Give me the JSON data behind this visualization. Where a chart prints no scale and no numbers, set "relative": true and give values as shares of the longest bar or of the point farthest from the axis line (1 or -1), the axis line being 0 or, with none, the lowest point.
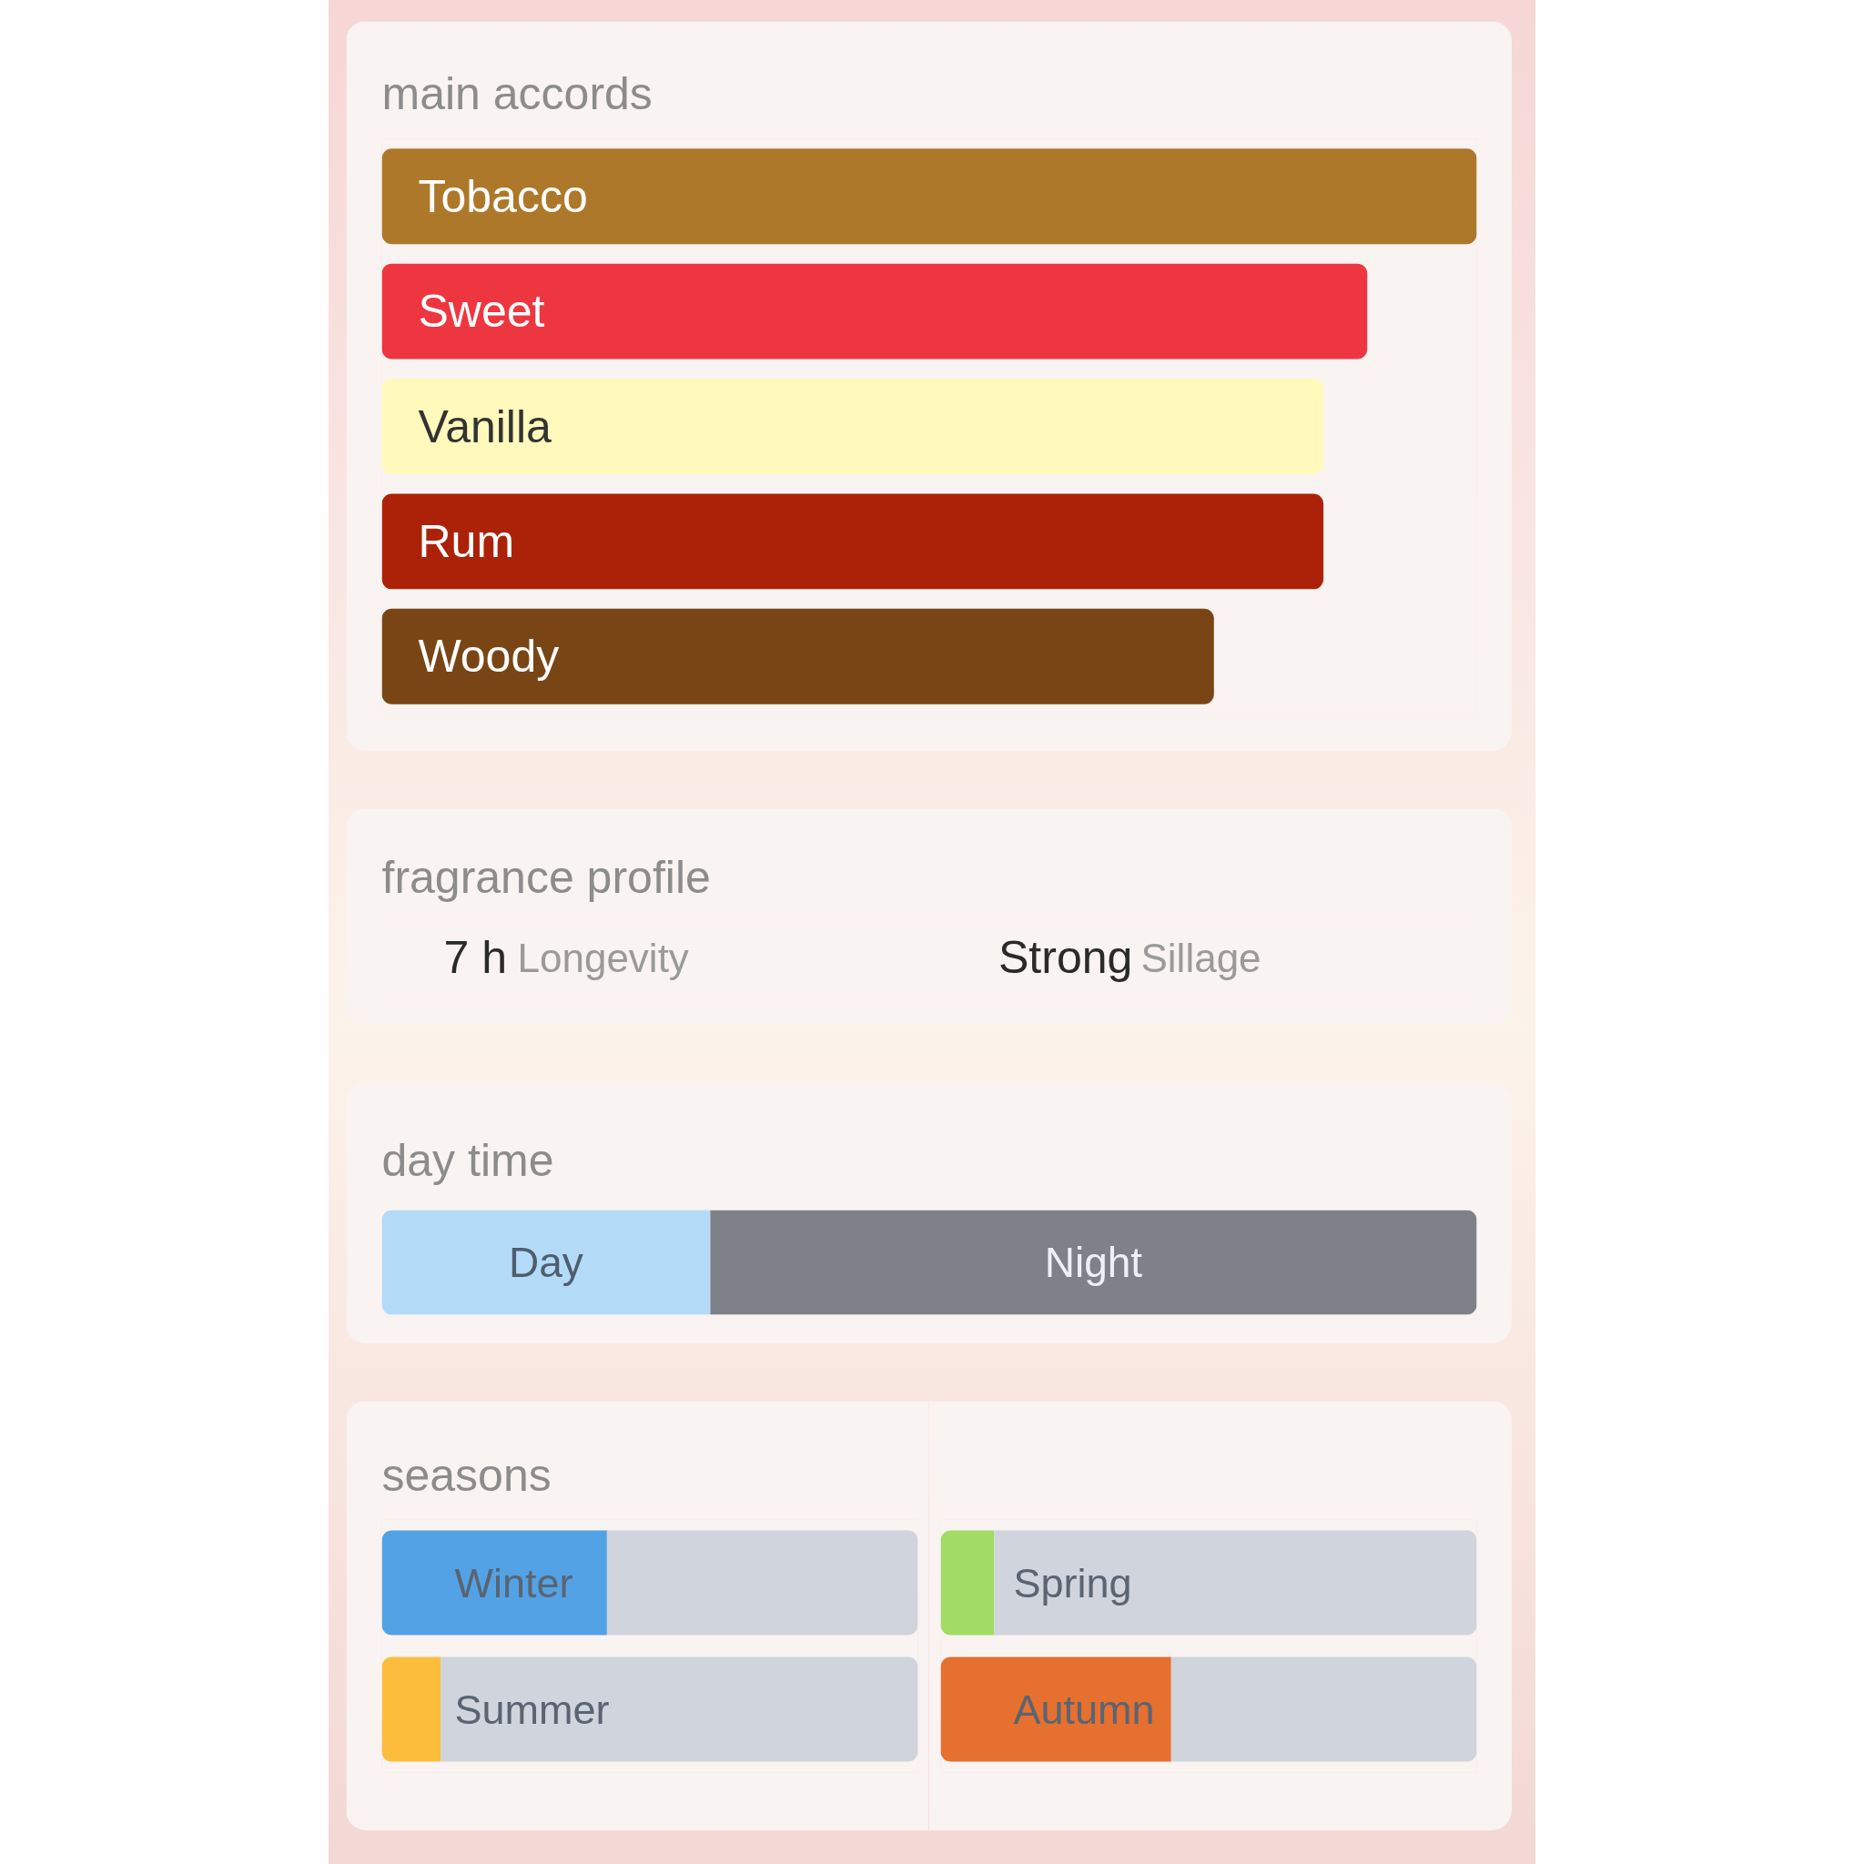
{
  "chart_data": [
    {
      "type": "bar",
      "title": "main accords",
      "orientation": "horizontal",
      "relative": true,
      "categories": [
        "Tobacco",
        "Sweet",
        "Vanilla",
        "Rum",
        "Woody"
      ],
      "values": [
        1,
        0.9,
        0.86,
        0.86,
        0.76
      ],
      "colors": [
        "#ae782a",
        "#ee3640",
        "#fff9bb",
        "#ac2208",
        "#7a4515"
      ]
    },
    {
      "type": "other",
      "title": "fragrance profile",
      "annotations": [
        "7 h",
        "Longevity",
        "Strong",
        "Sillage"
      ]
    },
    {
      "type": "bar",
      "title": "day time",
      "orientation": "horizontal",
      "relative": true,
      "stacked": true,
      "categories": [
        null
      ],
      "series": [
        {
          "name": "Day",
          "color": "#b3dbf8",
          "values": [
            0.3
          ]
        },
        {
          "name": "Night",
          "color": "#7f8188",
          "values": [
            0.7
          ]
        }
      ]
    },
    {
      "type": "bar",
      "title": "seasons",
      "orientation": "horizontal",
      "relative": true,
      "stacked": true,
      "categories": [
        "Winter",
        "Summer"
      ],
      "series": [
        {
          "colors": [
            "#53a2e5",
            "#fbbd3b"
          ],
          "values": [
            0.42,
            0.11
          ]
        },
        {
          "color": "#d0d4dc",
          "values": [
            0.58,
            0.89
          ]
        }
      ]
    },
    {
      "type": "bar",
      "orientation": "horizontal",
      "relative": true,
      "stacked": true,
      "categories": [
        "Spring",
        "Autumn"
      ],
      "series": [
        {
          "colors": [
            "#a3dc65",
            "#e57030"
          ],
          "values": [
            0.1,
            0.43
          ]
        },
        {
          "color": "#d0d4dc",
          "values": [
            0.9,
            0.57
          ]
        }
      ]
    }
  ]
}
